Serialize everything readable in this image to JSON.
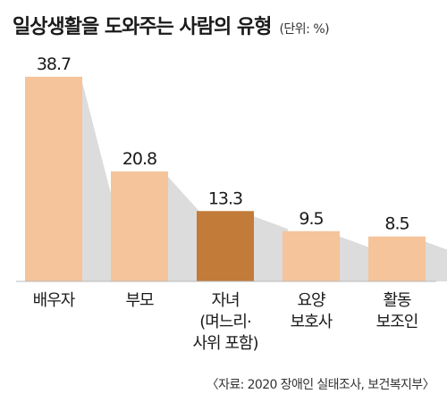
{
  "chart_data": {
    "type": "bar",
    "title": "일상생활을 도와주는 사람의 유형",
    "unit": "(단위: %)",
    "categories": [
      [
        "배우자"
      ],
      [
        "부모"
      ],
      [
        "자녀",
        "(며느리·",
        "사위 포함)"
      ],
      [
        "요양",
        "보호사"
      ],
      [
        "활동",
        "보조인"
      ]
    ],
    "values": [
      38.7,
      20.8,
      13.3,
      9.5,
      8.5
    ],
    "value_labels": [
      "38.7",
      "20.8",
      "13.3",
      "9.5",
      "8.5"
    ],
    "highlight_index": 2,
    "ylim": [
      0,
      40
    ]
  },
  "colors": {
    "bar": "#f5c49a",
    "highlight": "#c27b38",
    "shadow": "#dcdcdc",
    "baseline": "#b9b9b9"
  },
  "source": "〈자료: 2020 장애인 실태조사, 보건복지부〉"
}
